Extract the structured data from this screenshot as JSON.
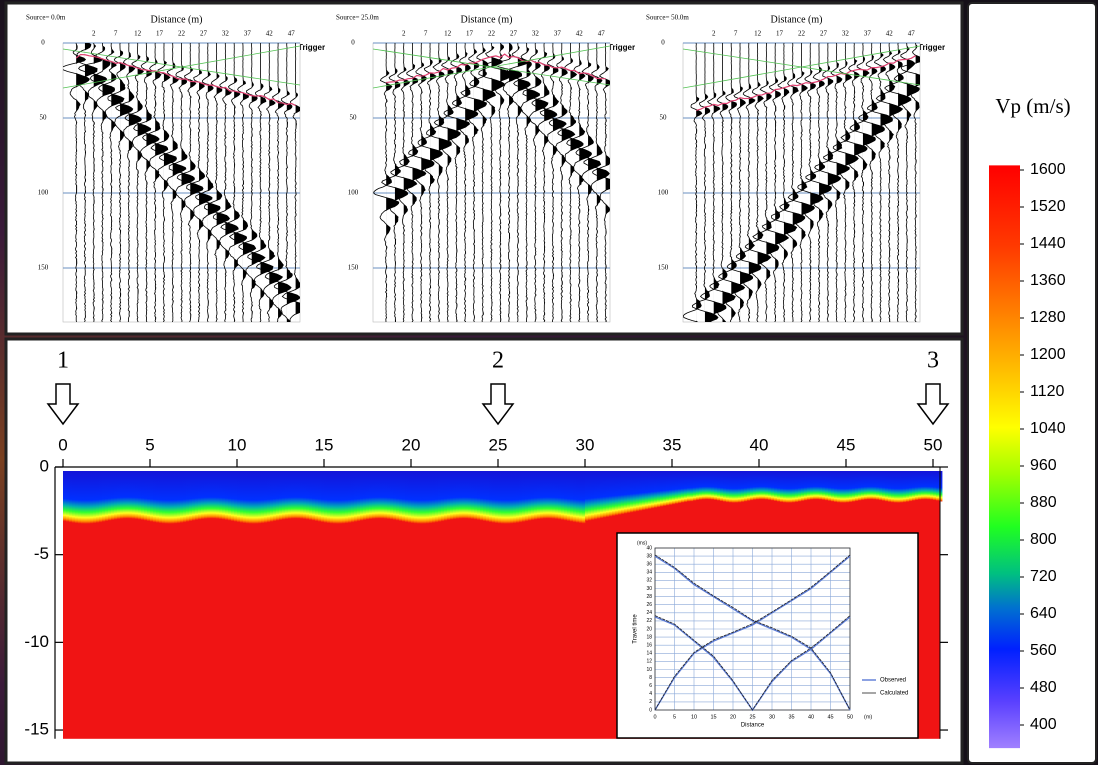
{
  "chart_data": [
    {
      "type": "seismogram",
      "title": "Distance (m)",
      "subtitle": "Source= 0.0m",
      "annotation": "Trigger",
      "xlim": [
        -5,
        49
      ],
      "xticks": [
        2,
        7,
        12,
        17,
        22,
        27,
        32,
        37,
        42,
        47
      ],
      "ylim": [
        0,
        186
      ],
      "yticks": [
        0,
        50,
        100,
        150
      ],
      "grid": true
    },
    {
      "type": "seismogram",
      "title": "Distance (m)",
      "subtitle": "Source= 25.0m",
      "annotation": "Trigger",
      "xlim": [
        -5,
        49
      ],
      "xticks": [
        2,
        7,
        12,
        17,
        22,
        27,
        32,
        37,
        42,
        47
      ],
      "ylim": [
        0,
        186
      ],
      "yticks": [
        0,
        50,
        100,
        150
      ],
      "grid": true
    },
    {
      "type": "seismogram",
      "title": "Distance (m)",
      "subtitle": "Source= 50.0m",
      "annotation": "Trigger",
      "xlim": [
        -5,
        49
      ],
      "xticks": [
        2,
        7,
        12,
        17,
        22,
        27,
        32,
        37,
        42,
        47
      ],
      "ylim": [
        0,
        186
      ],
      "yticks": [
        0,
        50,
        100,
        150
      ],
      "grid": true
    },
    {
      "type": "heatmap",
      "annotations": [
        "1",
        "2",
        "3"
      ],
      "annotation_x": [
        0,
        25,
        50
      ],
      "xlim": [
        0,
        50
      ],
      "xticks": [
        0,
        5,
        10,
        15,
        20,
        25,
        30,
        35,
        40,
        45,
        50
      ],
      "ylim": [
        -15.5,
        0
      ],
      "yticks": [
        0,
        -5,
        -10,
        -15
      ],
      "colorbar_title": "Vp (m/s)",
      "zlim": [
        350,
        1610
      ],
      "zticks": [
        1600,
        1520,
        1440,
        1360,
        1280,
        1200,
        1120,
        1040,
        960,
        880,
        800,
        720,
        640,
        560,
        480,
        400
      ]
    },
    {
      "type": "line",
      "xlabel": "Distance",
      "ylabel": "Travel time",
      "xunit": "(m)",
      "yunit": "(ms)",
      "xlim": [
        0,
        50
      ],
      "ylim": [
        0,
        40
      ],
      "xticks": [
        0,
        5,
        10,
        15,
        20,
        25,
        30,
        35,
        40,
        45,
        50
      ],
      "yticks": [
        0,
        2,
        4,
        6,
        8,
        10,
        12,
        14,
        16,
        18,
        20,
        22,
        24,
        26,
        28,
        30,
        32,
        34,
        36,
        38,
        40
      ],
      "grid": true,
      "x": [
        0,
        5,
        10,
        15,
        20,
        25,
        30,
        35,
        40,
        45,
        50,
        null,
        0,
        5,
        10,
        15,
        20,
        25,
        30,
        35,
        40,
        45,
        50,
        null,
        0,
        5,
        10,
        15,
        20,
        25,
        30,
        35,
        40,
        45,
        50
      ],
      "series": [
        {
          "name": "Observed",
          "color": "#5b7bd5",
          "values": [
            0,
            8,
            14,
            17,
            19,
            21,
            24,
            27,
            30,
            34,
            38,
            null,
            23,
            21,
            17,
            13,
            7,
            0,
            7,
            12,
            15,
            19,
            23,
            null,
            38,
            35,
            31,
            28,
            25,
            22,
            20,
            18,
            15,
            9,
            0
          ]
        },
        {
          "name": "Calculated",
          "color": "#222222",
          "values": [
            0,
            8.3,
            14.2,
            17.3,
            19.2,
            21.3,
            24.2,
            27.2,
            30.3,
            34.2,
            38.3,
            null,
            23.3,
            21.2,
            17.2,
            13.3,
            7.2,
            0,
            7.3,
            12.2,
            15.3,
            19.2,
            23.3,
            null,
            38.3,
            35.2,
            31.3,
            28.2,
            25.3,
            22.2,
            20.3,
            18.2,
            15.3,
            9.2,
            0
          ]
        }
      ]
    }
  ]
}
